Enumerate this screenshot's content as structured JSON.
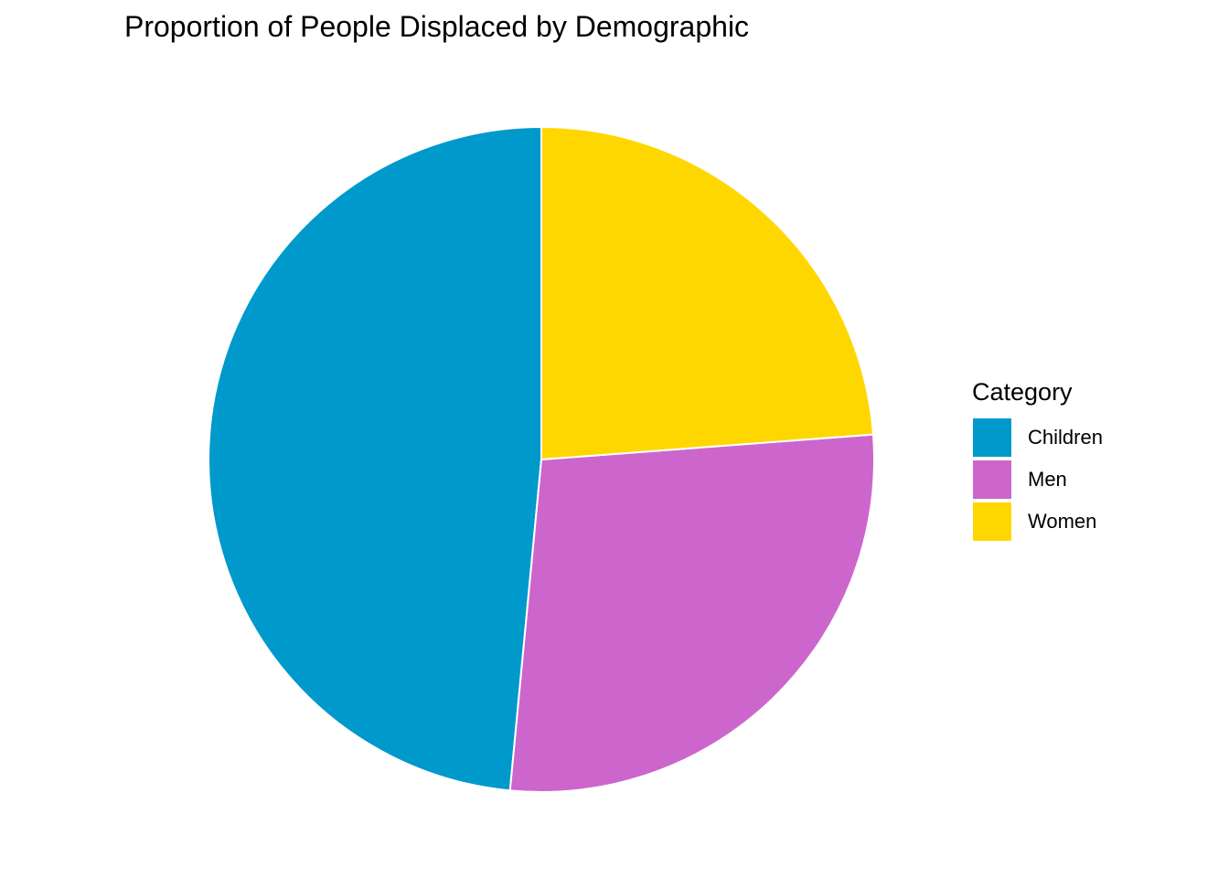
{
  "chart_data": {
    "type": "pie",
    "title": "Proportion of People Displaced by Demographic",
    "legend_title": "Category",
    "legend_position": "right",
    "categories": [
      "Children",
      "Men",
      "Women"
    ],
    "values": [
      48.5,
      27.7,
      23.8
    ],
    "colors": [
      "#0099CC",
      "#CC66CC",
      "#FFD700"
    ],
    "start": "top",
    "direction": "counter-clockwise"
  }
}
